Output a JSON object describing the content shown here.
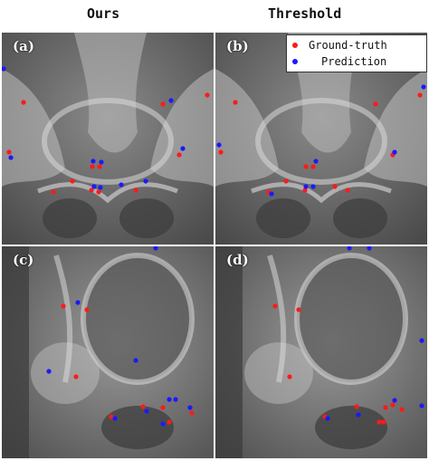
{
  "headers": {
    "left": "Ours",
    "right": "Threshold"
  },
  "panels": [
    {
      "label": "(a)"
    },
    {
      "label": "(b)"
    },
    {
      "label": "(c)"
    },
    {
      "label": "(d)"
    }
  ],
  "legend": {
    "ground_truth": "Ground-truth",
    "prediction": "Prediction"
  },
  "colors": {
    "ground_truth": "#ff1a1a",
    "prediction": "#1a1aff"
  }
}
